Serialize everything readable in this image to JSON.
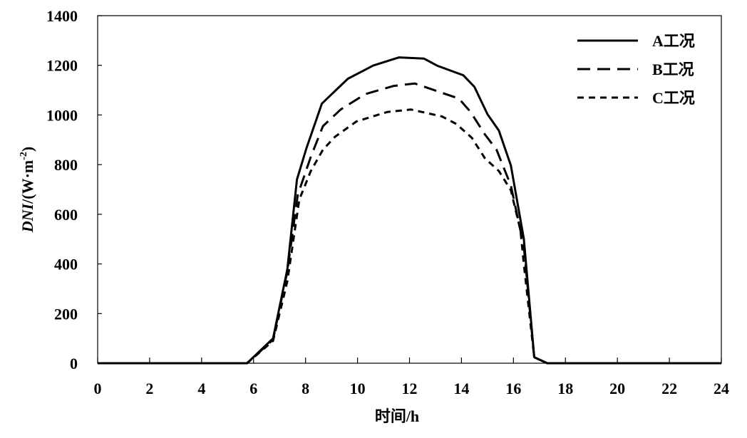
{
  "chart_data": {
    "type": "line",
    "title": "",
    "xlabel": "时间/h",
    "ylabel": {
      "italic": "DNI",
      "text": "/(W·m",
      "sup": "-2",
      "close": ")"
    },
    "xlim": [
      0,
      24
    ],
    "ylim": [
      0,
      1400
    ],
    "xticks": [
      0,
      2,
      4,
      6,
      8,
      10,
      12,
      14,
      16,
      18,
      20,
      22,
      24
    ],
    "yticks": [
      0,
      200,
      400,
      600,
      800,
      1000,
      1200,
      1400
    ],
    "grid": false,
    "legend_position": "top-right",
    "series": [
      {
        "name": "A工况",
        "style": "solid",
        "x": [
          0,
          5.75,
          6.75,
          7.3,
          7.67,
          8.03,
          8.63,
          9.63,
          10.6,
          11.6,
          12.56,
          13.06,
          14.07,
          14.5,
          15.0,
          15.44,
          15.9,
          16.4,
          16.8,
          17.3,
          24
        ],
        "y": [
          0,
          0,
          100,
          378,
          740,
          865,
          1046,
          1146,
          1199,
          1232,
          1227,
          1199,
          1160,
          1113,
          1003,
          937,
          797,
          501,
          24,
          0,
          0
        ]
      },
      {
        "name": "B工况",
        "style": "dashed",
        "x": [
          0,
          5.75,
          6.75,
          7.3,
          7.7,
          8.2,
          8.67,
          9.35,
          10.3,
          11.4,
          12.2,
          13.9,
          14.35,
          14.9,
          15.35,
          15.9,
          16.4,
          16.8,
          17.3,
          24
        ],
        "y": [
          0,
          0,
          95,
          370,
          678,
          831,
          955,
          1022,
          1084,
          1117,
          1127,
          1066,
          1012,
          922,
          860,
          716,
          470,
          24,
          0,
          0
        ]
      },
      {
        "name": "C工况",
        "style": "dotted",
        "x": [
          0,
          5.75,
          6.75,
          7.3,
          7.76,
          8.2,
          8.67,
          9.13,
          9.96,
          11.15,
          12.06,
          13.25,
          13.8,
          14.4,
          14.9,
          15.44,
          15.9,
          16.27,
          16.4,
          16.8,
          17.3,
          24
        ],
        "y": [
          0,
          0,
          90,
          330,
          659,
          774,
          860,
          912,
          974,
          1012,
          1022,
          994,
          964,
          908,
          826,
          774,
          697,
          535,
          400,
          24,
          0,
          0
        ]
      }
    ]
  }
}
